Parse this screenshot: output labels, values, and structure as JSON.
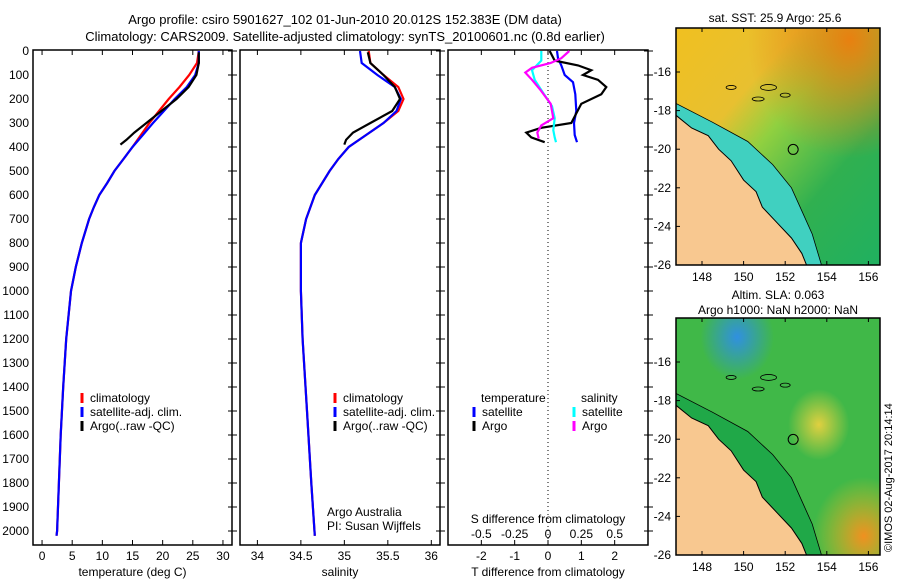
{
  "title_line1": "Argo profile: csiro 5901627_102 01-Jun-2010 20.012S 152.383E (DM data)",
  "title_line2": "Climatology: CARS2009. Satellite-adjusted climatology: synTS_20100601.nc (0.8d earlier)",
  "copyright": "©IMOS 02-Aug-2017 20:14:14",
  "chart_data": [
    {
      "type": "line",
      "xlabel": "temperature (deg C)",
      "ylabel": "depth",
      "xlim": [
        -1.5,
        31.5
      ],
      "ylim": [
        2100,
        0
      ],
      "xticks": [
        0,
        5,
        10,
        15,
        20,
        25,
        30
      ],
      "yticks": [
        0,
        100,
        200,
        300,
        400,
        500,
        600,
        700,
        800,
        900,
        1000,
        1100,
        1200,
        1300,
        1400,
        1500,
        1600,
        1700,
        1800,
        1900,
        2000
      ],
      "legend": [
        "climatology",
        "satellite-adj. clim.",
        "Argo(..raw -QC)"
      ],
      "series": [
        {
          "name": "climatology",
          "color": "#ff0000",
          "points": [
            [
              0,
              26
            ],
            [
              50,
              25.7
            ],
            [
              100,
              24.4
            ],
            [
              150,
              22.8
            ],
            [
              200,
              21
            ],
            [
              250,
              19.4
            ],
            [
              300,
              17.8
            ],
            [
              350,
              16.4
            ],
            [
              400,
              15
            ],
            [
              450,
              13.5
            ],
            [
              500,
              12
            ],
            [
              550,
              10.8
            ],
            [
              600,
              9.5
            ],
            [
              650,
              8.6
            ],
            [
              700,
              7.8
            ],
            [
              800,
              6.6
            ],
            [
              900,
              5.6
            ],
            [
              1000,
              4.8
            ],
            [
              1200,
              4.0
            ],
            [
              1400,
              3.5
            ],
            [
              1600,
              3.1
            ],
            [
              1800,
              2.8
            ],
            [
              2000,
              2.5
            ],
            [
              2020,
              2.4
            ]
          ]
        },
        {
          "name": "satellite-adj. clim.",
          "color": "#0000ff",
          "points": [
            [
              0,
              26
            ],
            [
              50,
              26
            ],
            [
              100,
              25.4
            ],
            [
              150,
              24
            ],
            [
              200,
              22
            ],
            [
              250,
              20.2
            ],
            [
              300,
              18.4
            ],
            [
              350,
              16.7
            ],
            [
              400,
              15
            ],
            [
              450,
              13.5
            ],
            [
              500,
              12
            ],
            [
              550,
              10.8
            ],
            [
              600,
              9.5
            ],
            [
              650,
              8.6
            ],
            [
              700,
              7.8
            ],
            [
              800,
              6.6
            ],
            [
              900,
              5.6
            ],
            [
              1000,
              4.8
            ],
            [
              1200,
              4.0
            ],
            [
              1400,
              3.5
            ],
            [
              1600,
              3.1
            ],
            [
              1800,
              2.8
            ],
            [
              2000,
              2.5
            ],
            [
              2020,
              2.4
            ]
          ]
        },
        {
          "name": "Argo(..raw -QC)",
          "color": "#000000",
          "points": [
            [
              5,
              26
            ],
            [
              50,
              26
            ],
            [
              100,
              25.6
            ],
            [
              150,
              24.3
            ],
            [
              200,
              22.3
            ],
            [
              250,
              19.8
            ],
            [
              300,
              17.3
            ],
            [
              340,
              15.3
            ],
            [
              370,
              14
            ],
            [
              390,
              13
            ]
          ]
        }
      ]
    },
    {
      "type": "line",
      "xlabel": "salinity",
      "ylabel": "depth",
      "xlim": [
        33.8,
        36.1
      ],
      "ylim": [
        2100,
        0
      ],
      "xticks": [
        34,
        34.5,
        35,
        35.5,
        36
      ],
      "legend": [
        "climatology",
        "satellite-adj. clim.",
        "Argo(..raw -QC)"
      ],
      "annotation": [
        "Argo Australia",
        "PI: Susan Wijffels"
      ],
      "series": [
        {
          "name": "climatology",
          "color": "#ff0000",
          "points": [
            [
              0,
              35.28
            ],
            [
              50,
              35.3
            ],
            [
              100,
              35.45
            ],
            [
              150,
              35.62
            ],
            [
              200,
              35.68
            ],
            [
              250,
              35.62
            ],
            [
              300,
              35.45
            ],
            [
              350,
              35.25
            ],
            [
              400,
              35.05
            ],
            [
              450,
              34.93
            ],
            [
              500,
              34.83
            ],
            [
              600,
              34.66
            ],
            [
              700,
              34.56
            ],
            [
              800,
              34.5
            ],
            [
              1000,
              34.5
            ],
            [
              1200,
              34.52
            ],
            [
              1500,
              34.57
            ],
            [
              1800,
              34.62
            ],
            [
              2020,
              34.66
            ]
          ]
        },
        {
          "name": "satellite-adj. clim.",
          "color": "#0000ff",
          "points": [
            [
              0,
              35.18
            ],
            [
              50,
              35.2
            ],
            [
              100,
              35.38
            ],
            [
              150,
              35.58
            ],
            [
              200,
              35.65
            ],
            [
              250,
              35.6
            ],
            [
              300,
              35.45
            ],
            [
              350,
              35.25
            ],
            [
              400,
              35.05
            ],
            [
              450,
              34.93
            ],
            [
              500,
              34.83
            ],
            [
              600,
              34.66
            ],
            [
              700,
              34.56
            ],
            [
              800,
              34.5
            ],
            [
              1000,
              34.5
            ],
            [
              1200,
              34.52
            ],
            [
              1500,
              34.57
            ],
            [
              1800,
              34.62
            ],
            [
              2020,
              34.66
            ]
          ]
        },
        {
          "name": "Argo(..raw -QC)",
          "color": "#000000",
          "points": [
            [
              5,
              35.27
            ],
            [
              50,
              35.3
            ],
            [
              100,
              35.45
            ],
            [
              150,
              35.58
            ],
            [
              200,
              35.64
            ],
            [
              250,
              35.55
            ],
            [
              300,
              35.3
            ],
            [
              340,
              35.1
            ],
            [
              370,
              35.02
            ],
            [
              390,
              35.0
            ]
          ]
        }
      ]
    },
    {
      "type": "line",
      "xlabel": "T difference from climatology",
      "x2label": "S difference from climatology",
      "xlim": [
        -3,
        3
      ],
      "ylim": [
        2100,
        0
      ],
      "xticks": [
        -2,
        -1,
        0,
        1,
        2
      ],
      "x2ticks": [
        -0.5,
        -0.25,
        0,
        0.25,
        0.5
      ],
      "legend_titles": [
        "temperature",
        "salinity"
      ],
      "series": [
        {
          "name": "satellite",
          "group": "temperature",
          "color": "#0000ff",
          "scale": "T",
          "points": [
            [
              0,
              0.27
            ],
            [
              30,
              0.3
            ],
            [
              60,
              0.4
            ],
            [
              100,
              0.5
            ],
            [
              130,
              0.75
            ],
            [
              180,
              0.82
            ],
            [
              250,
              0.85
            ],
            [
              300,
              0.78
            ],
            [
              350,
              0.8
            ],
            [
              380,
              0.87
            ]
          ]
        },
        {
          "name": "Argo",
          "group": "temperature",
          "color": "#000000",
          "scale": "T",
          "points": [
            [
              0,
              0.05
            ],
            [
              40,
              0.2
            ],
            [
              60,
              0.9
            ],
            [
              80,
              1.3
            ],
            [
              100,
              1.05
            ],
            [
              120,
              1.5
            ],
            [
              150,
              1.75
            ],
            [
              180,
              1.6
            ],
            [
              220,
              1.0
            ],
            [
              260,
              0.85
            ],
            [
              300,
              0.7
            ],
            [
              320,
              -0.2
            ],
            [
              340,
              -0.65
            ],
            [
              360,
              -0.5
            ],
            [
              380,
              -0.1
            ]
          ]
        },
        {
          "name": "satellite",
          "group": "salinity",
          "color": "#00ffff",
          "scale": "S",
          "points": [
            [
              0,
              -0.05
            ],
            [
              40,
              -0.05
            ],
            [
              80,
              -0.12
            ],
            [
              120,
              -0.1
            ],
            [
              180,
              -0.03
            ],
            [
              230,
              0.03
            ],
            [
              280,
              0.05
            ],
            [
              330,
              0.04
            ],
            [
              360,
              0.05
            ],
            [
              380,
              0.06
            ]
          ]
        },
        {
          "name": "Argo",
          "group": "salinity",
          "color": "#ff00ff",
          "scale": "S",
          "points": [
            [
              0,
              0.16
            ],
            [
              30,
              0.1
            ],
            [
              50,
              0.02
            ],
            [
              70,
              -0.12
            ],
            [
              90,
              -0.17
            ],
            [
              120,
              -0.12
            ],
            [
              160,
              -0.06
            ],
            [
              220,
              0.02
            ],
            [
              280,
              0.04
            ],
            [
              310,
              -0.05
            ],
            [
              340,
              -0.08
            ],
            [
              365,
              -0.07
            ]
          ]
        }
      ]
    }
  ],
  "maps": [
    {
      "title": "sat. SST: 25.9 Argo: 25.6",
      "lon_ticks": [
        148,
        150,
        152,
        154,
        156
      ],
      "lat_ticks": [
        -16,
        -18,
        -20,
        -22,
        -24,
        -26
      ],
      "argo_lon": 152.383,
      "argo_lat": -20.012
    },
    {
      "title_line1": "Altim. SLA: 0.063",
      "title_line2": "Argo h1000: NaN h2000: NaN",
      "lon_ticks": [
        148,
        150,
        152,
        154,
        156
      ],
      "lat_ticks": [
        -16,
        -18,
        -20,
        -22,
        -24,
        -26
      ],
      "argo_lon": 152.383,
      "argo_lat": -20.012
    }
  ]
}
